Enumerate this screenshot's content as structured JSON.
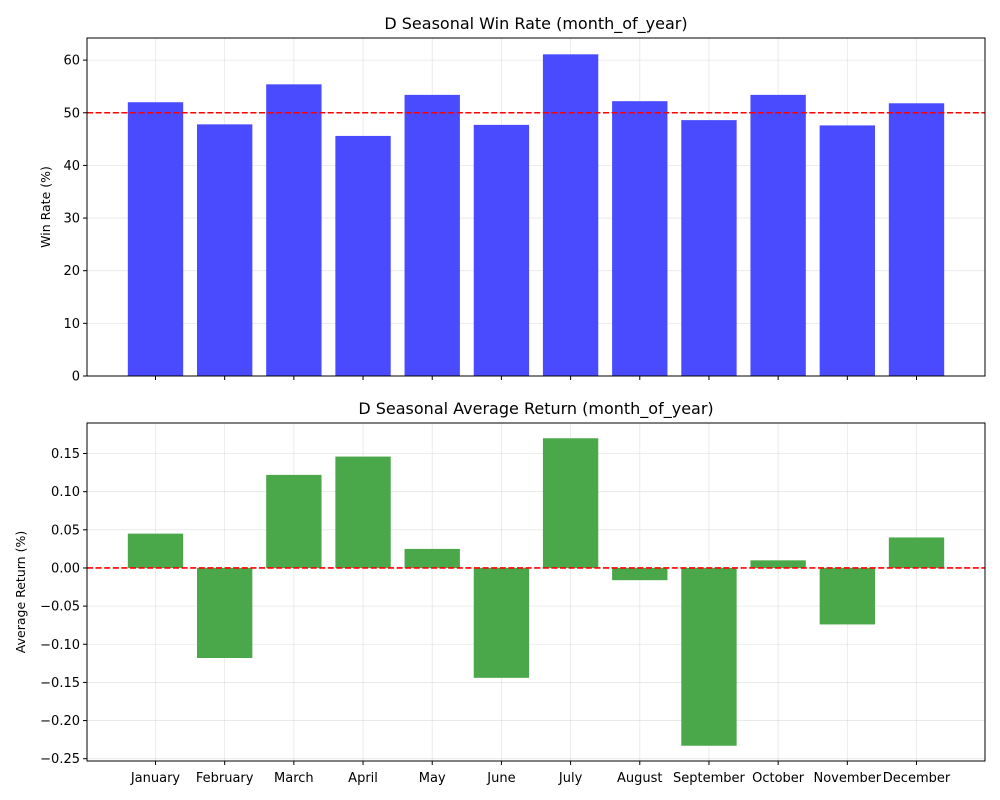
{
  "chart_data": [
    {
      "type": "bar",
      "title": "D Seasonal Win Rate (month_of_year)",
      "xlabel": "",
      "ylabel": "Win Rate (%)",
      "categories": [
        "January",
        "February",
        "March",
        "April",
        "May",
        "June",
        "July",
        "August",
        "September",
        "October",
        "November",
        "December"
      ],
      "values": [
        52.0,
        47.8,
        55.4,
        45.6,
        53.4,
        47.7,
        61.1,
        52.2,
        48.6,
        53.4,
        47.6,
        51.8
      ],
      "ylim": [
        0,
        64.2
      ],
      "yticks": [
        0,
        10,
        20,
        30,
        40,
        50,
        60
      ],
      "ytick_labels": [
        "0",
        "10",
        "20",
        "30",
        "40",
        "50",
        "60"
      ],
      "show_category_labels": false,
      "reference_line": {
        "y": 50,
        "color": "#ff0000",
        "style": "dashed"
      },
      "bar_color": "#4a4aff",
      "grid": true
    },
    {
      "type": "bar",
      "title": "D Seasonal Average Return (month_of_year)",
      "xlabel": "",
      "ylabel": "Average Return (%)",
      "categories": [
        "January",
        "February",
        "March",
        "April",
        "May",
        "June",
        "July",
        "August",
        "September",
        "October",
        "November",
        "December"
      ],
      "values": [
        0.045,
        -0.118,
        0.122,
        0.146,
        0.025,
        -0.144,
        0.17,
        -0.016,
        -0.233,
        0.01,
        -0.074,
        0.04
      ],
      "ylim": [
        -0.253,
        0.19
      ],
      "yticks": [
        -0.25,
        -0.2,
        -0.15,
        -0.1,
        -0.05,
        0.0,
        0.05,
        0.1,
        0.15
      ],
      "ytick_labels": [
        "−0.25",
        "−0.20",
        "−0.15",
        "−0.10",
        "−0.05",
        "0.00",
        "0.05",
        "0.10",
        "0.15"
      ],
      "show_category_labels": true,
      "reference_line": {
        "y": 0,
        "color": "#ff0000",
        "style": "dashed"
      },
      "bar_color": "#4aa84a",
      "grid": true
    }
  ]
}
